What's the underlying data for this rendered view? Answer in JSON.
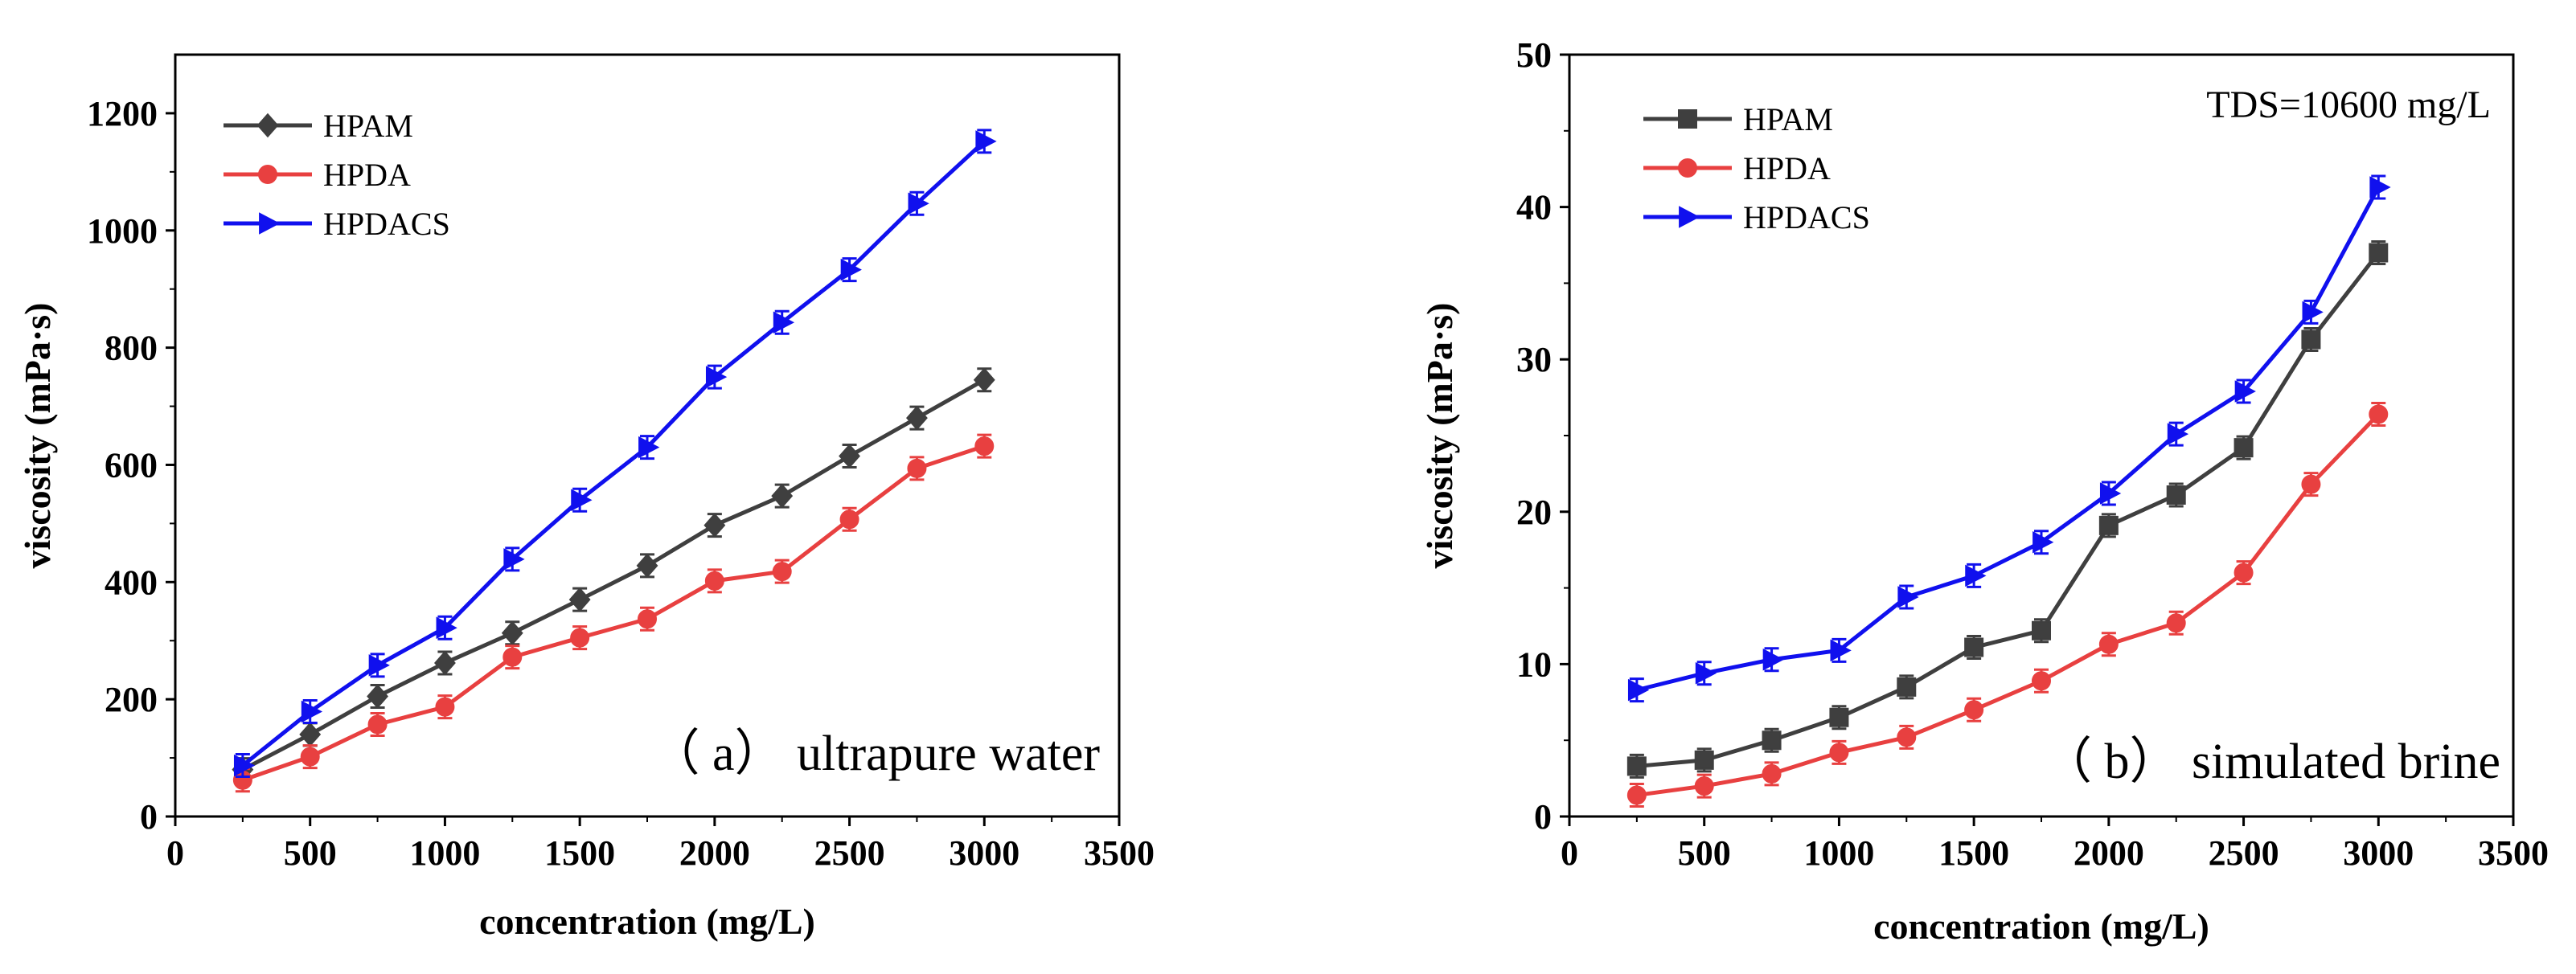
{
  "chart_data": [
    {
      "type": "line",
      "xlabel": "concentration (mg/L)",
      "ylabel": "viscosity (mPa·s)",
      "xlim": [
        0,
        3500
      ],
      "ylim": [
        0,
        1300
      ],
      "xticks": [
        0,
        500,
        1000,
        1500,
        2000,
        2500,
        3000,
        3500
      ],
      "yticks": [
        0,
        200,
        400,
        600,
        800,
        1000,
        1200
      ],
      "legend_position": "top-left",
      "annotation": "（ a） ultrapure water",
      "x": [
        250,
        500,
        750,
        1000,
        1250,
        1500,
        1750,
        2000,
        2250,
        2500,
        2750,
        3000
      ],
      "series": [
        {
          "name": "HPAM",
          "color": "#3f3f3f",
          "marker": "diamond",
          "values": [
            80,
            140,
            205,
            262,
            313,
            370,
            428,
            497,
            547,
            615,
            680,
            745
          ]
        },
        {
          "name": "HPDA",
          "color": "#e84040",
          "marker": "circle",
          "values": [
            62,
            102,
            157,
            187,
            272,
            305,
            337,
            402,
            418,
            507,
            594,
            632
          ]
        },
        {
          "name": "HPDACS",
          "color": "#1010ee",
          "marker": "triangle-right",
          "values": [
            87,
            179,
            258,
            322,
            439,
            540,
            630,
            750,
            843,
            933,
            1046,
            1152
          ]
        }
      ]
    },
    {
      "type": "line",
      "xlabel": "concentration (mg/L)",
      "ylabel": "viscosity (mPa·s)",
      "xlim": [
        0,
        3500
      ],
      "ylim": [
        0,
        50
      ],
      "xticks": [
        0,
        500,
        1000,
        1500,
        2000,
        2500,
        3000,
        3500
      ],
      "yticks": [
        0,
        10,
        20,
        30,
        40,
        50
      ],
      "legend_position": "top-left",
      "annotation": "（ b） simulated brine",
      "subtitle": "TDS=10600 mg/L",
      "x": [
        250,
        500,
        750,
        1000,
        1250,
        1500,
        1750,
        2000,
        2250,
        2500,
        2750,
        3000
      ],
      "series": [
        {
          "name": "HPAM",
          "color": "#3f3f3f",
          "marker": "square",
          "values": [
            3.3,
            3.7,
            5.0,
            6.5,
            8.5,
            11.1,
            12.2,
            19.1,
            21.1,
            24.2,
            31.3,
            37.0
          ]
        },
        {
          "name": "HPDA",
          "color": "#e84040",
          "marker": "circle",
          "values": [
            1.4,
            2.0,
            2.8,
            4.2,
            5.2,
            7.0,
            8.9,
            11.3,
            12.7,
            16.0,
            21.8,
            26.4
          ]
        },
        {
          "name": "HPDACS",
          "color": "#1010ee",
          "marker": "triangle-right",
          "values": [
            8.3,
            9.4,
            10.3,
            10.9,
            14.4,
            15.8,
            18.0,
            21.2,
            25.1,
            27.9,
            33.1,
            41.3
          ]
        }
      ]
    }
  ]
}
